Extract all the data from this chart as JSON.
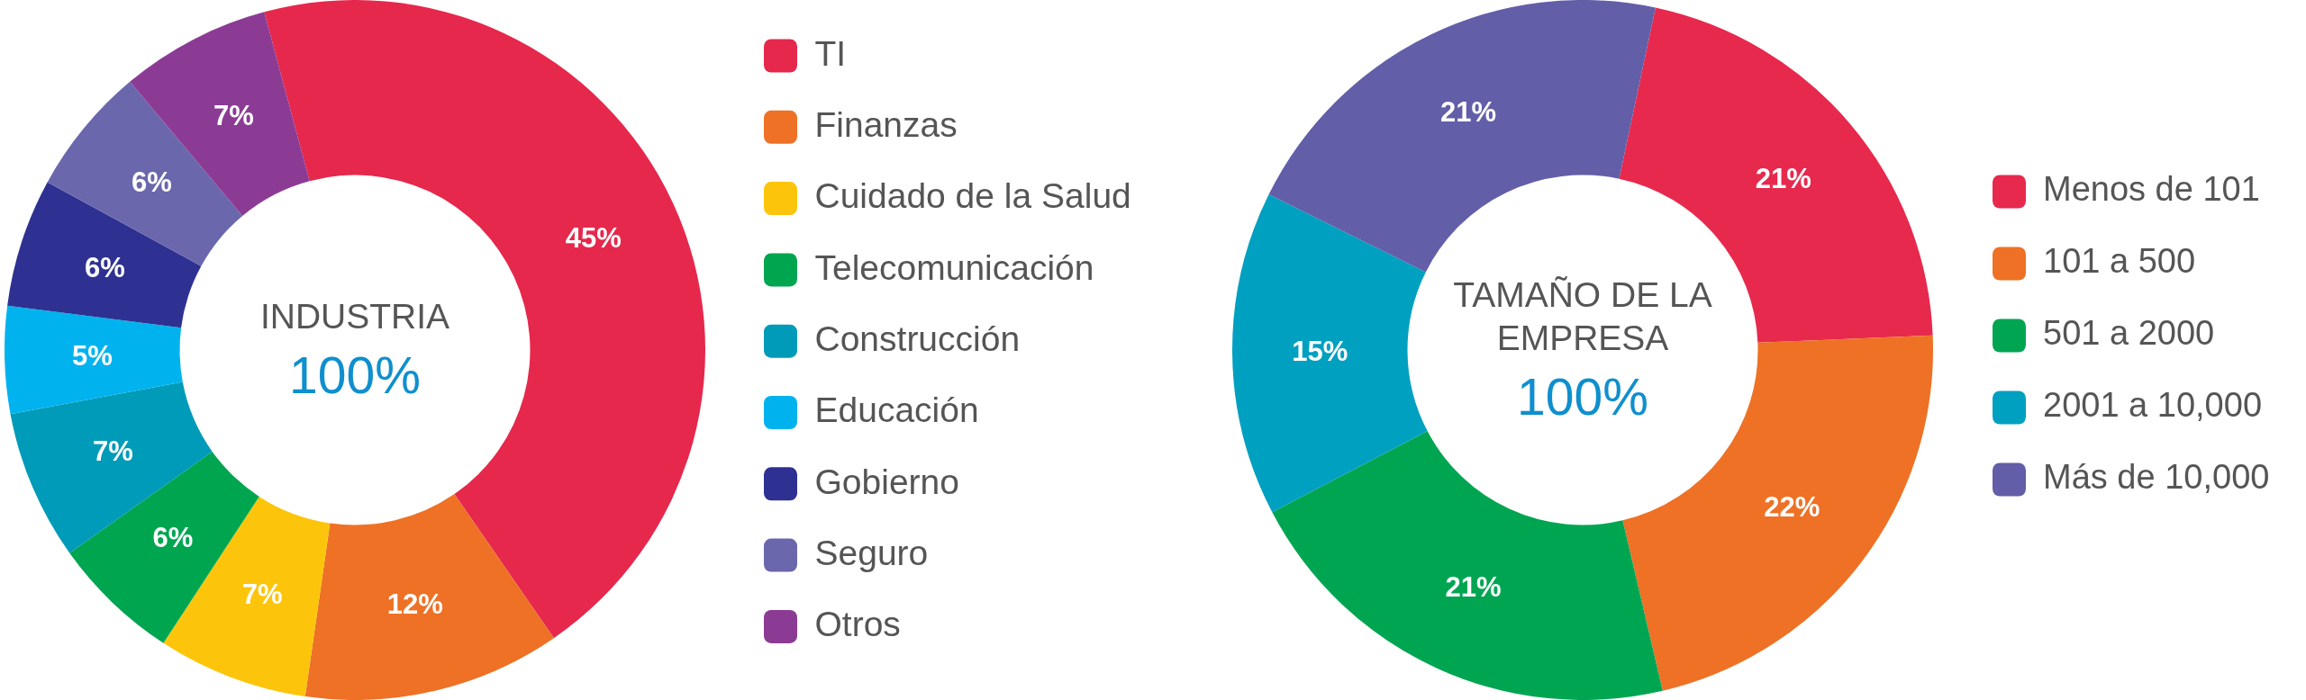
{
  "chart_data": [
    {
      "type": "donut",
      "title": "INDUSTRIA",
      "annotations": [
        "100%"
      ],
      "categories": [
        "TI",
        "Finanzas",
        "Cuidado de la Salud",
        "Telecomunicación",
        "Construcción",
        "Educación",
        "Gobierno",
        "Seguro",
        "Otros"
      ],
      "values": [
        45,
        12,
        7,
        6,
        7,
        5,
        6,
        6,
        7
      ],
      "value_labels": [
        "45%",
        "12%",
        "7%",
        "6%",
        "7%",
        "5%",
        "6%",
        "6%",
        "7%"
      ],
      "colors": [
        "#e5284c",
        "#ee7126",
        "#fcc50c",
        "#00a550",
        "#009bb8",
        "#00b3ee",
        "#2e3192",
        "#6b67ad",
        "#8c3b95"
      ],
      "legend": "right"
    },
    {
      "type": "donut",
      "title": "TAMAÑO DE LA EMPRESA",
      "annotations": [
        "100%"
      ],
      "categories": [
        "Menos de 101",
        "101 a 500",
        "501 a 2000",
        "2001 a 10,000",
        "Más de 10,000"
      ],
      "values": [
        21,
        22,
        21,
        15,
        21
      ],
      "value_labels": [
        "21%",
        "22%",
        "21%",
        "15%",
        "21%"
      ],
      "colors": [
        "#e7294d",
        "#ee7125",
        "#00a552",
        "#00a0c0",
        "#625ea8"
      ],
      "legend": "right"
    }
  ]
}
